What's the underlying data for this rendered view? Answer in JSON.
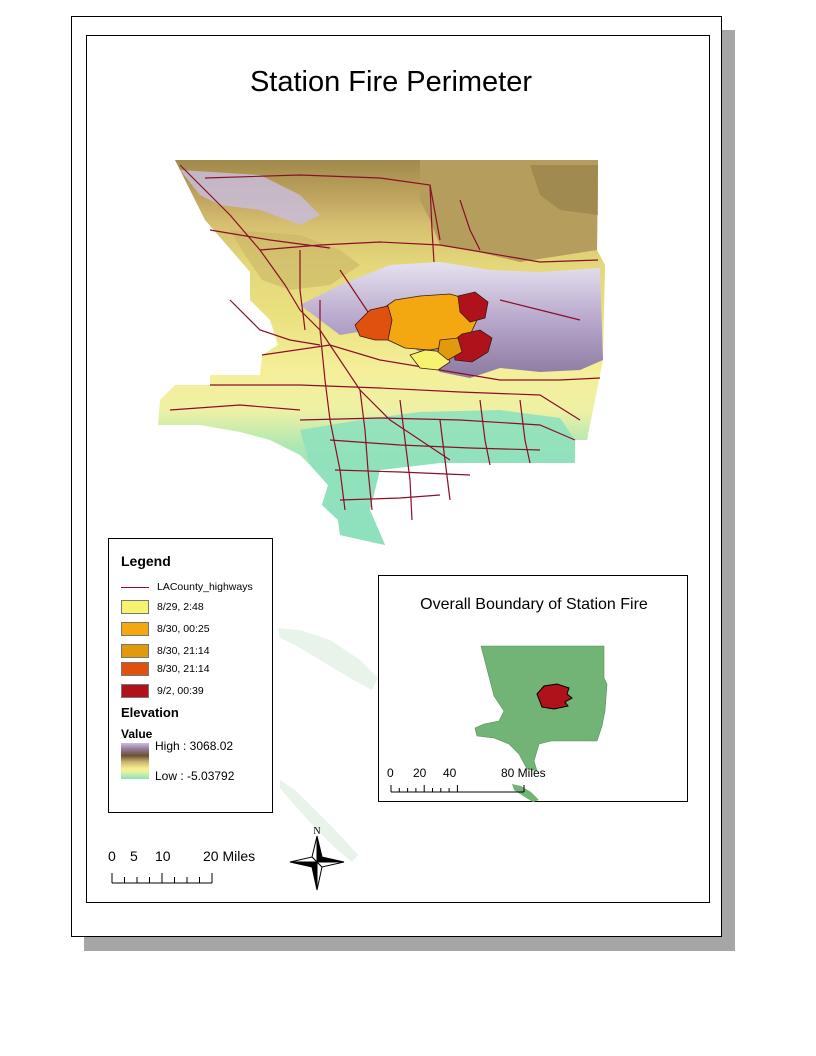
{
  "title": "Station Fire Perimeter",
  "legend": {
    "title": "Legend",
    "highways_label": "LACounty_highways",
    "fire_periods": [
      {
        "label": "8/29, 2:48",
        "color": "#f7f36e"
      },
      {
        "label": "8/30, 00:25",
        "color": "#f3a812"
      },
      {
        "label": "8/30, 21:14",
        "color": "#e19a0c"
      },
      {
        "label": "8/30, 21:14",
        "color": "#e0500f"
      },
      {
        "label": "9/2, 00:39",
        "color": "#b0121b"
      }
    ],
    "elevation_title": "Elevation",
    "value_title": "Value",
    "high_label": "High : 3068.02",
    "low_label": "Low : -5.03792"
  },
  "scalebar": {
    "labels": [
      "0",
      "5",
      "10",
      "20 Miles"
    ]
  },
  "north_arrow": {
    "label": "N"
  },
  "overview": {
    "title": "Overall Boundary of Station Fire",
    "scale_labels": [
      "0",
      "20",
      "40",
      "80 Miles"
    ],
    "county_color": "#72b476",
    "fire_color": "#b0121b"
  },
  "colors": {
    "highway": "#8b0f2a"
  }
}
